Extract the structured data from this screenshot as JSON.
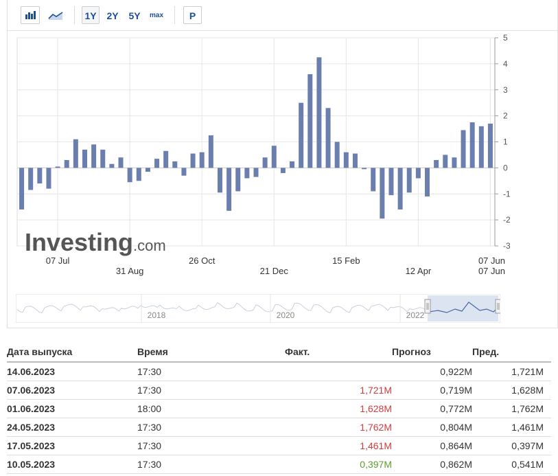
{
  "toolbar": {
    "bar_chart_icon": "bar-chart-icon",
    "area_chart_icon": "area-chart-icon",
    "ranges": [
      "1Y",
      "2Y",
      "5Y",
      "max"
    ],
    "active_range": "1Y",
    "p_label": "P"
  },
  "watermark": {
    "brand": "Investing",
    "suffix": ".com"
  },
  "colors": {
    "bar": "#6b7faf",
    "grid": "#e6e6e6",
    "red": "#d23c3c",
    "green": "#5a9e2b",
    "nav_fill": "#dce4f1",
    "nav_line": "#4a66a8"
  },
  "chart_data": {
    "type": "bar",
    "values": [
      -1.6,
      -0.85,
      -0.6,
      -0.8,
      0.05,
      0.3,
      1.1,
      0.7,
      0.9,
      0.7,
      0.15,
      0.4,
      -0.55,
      -0.5,
      -0.15,
      0.35,
      0.65,
      0.25,
      -0.3,
      0.55,
      0.6,
      1.25,
      -0.95,
      -1.65,
      -0.9,
      -0.4,
      -0.35,
      0.4,
      0.85,
      -0.2,
      0.25,
      2.5,
      3.6,
      4.25,
      2.3,
      1.0,
      0.6,
      0.55,
      -0.05,
      -0.9,
      -1.95,
      -1.05,
      -1.6,
      -0.95,
      -0.4,
      -1.1,
      0.3,
      0.5,
      0.4,
      1.45,
      1.75,
      1.6,
      1.7
    ],
    "ylim": [
      -3,
      5
    ],
    "yticks": [
      "-3",
      "-2",
      "-1",
      "0",
      "1",
      "2",
      "3",
      "4",
      "5"
    ],
    "xticks_row1": [
      {
        "label": "07 Jul",
        "index": 4
      },
      {
        "label": "26 Oct",
        "index": 20
      },
      {
        "label": "15 Feb",
        "index": 36
      },
      {
        "label": "07 Jun",
        "index": 52
      }
    ],
    "xticks_row2": [
      {
        "label": "31 Aug",
        "index": 12
      },
      {
        "label": "21 Dec",
        "index": 28
      },
      {
        "label": "12 Apr",
        "index": 44
      },
      {
        "label": "07 Jun",
        "index": 52
      }
    ]
  },
  "navigator": {
    "years": [
      "2018",
      "2020",
      "2022"
    ]
  },
  "table": {
    "headers": {
      "date": "Дата выпуска",
      "time": "Время",
      "fact": "Факт.",
      "forecast": "Прогноз",
      "prev": "Пред."
    },
    "rows": [
      {
        "date": "14.06.2023",
        "time": "17:30",
        "fact": "",
        "fact_color": "",
        "forecast": "0,922M",
        "prev": "1,721M"
      },
      {
        "date": "07.06.2023",
        "time": "17:30",
        "fact": "1,721M",
        "fact_color": "red",
        "forecast": "0,719M",
        "prev": "1,628M"
      },
      {
        "date": "01.06.2023",
        "time": "18:00",
        "fact": "1,628M",
        "fact_color": "red",
        "forecast": "0,772M",
        "prev": "1,762M"
      },
      {
        "date": "24.05.2023",
        "time": "17:30",
        "fact": "1,762M",
        "fact_color": "red",
        "forecast": "0,804M",
        "prev": "1,461M"
      },
      {
        "date": "17.05.2023",
        "time": "17:30",
        "fact": "1,461M",
        "fact_color": "red",
        "forecast": "0,864M",
        "prev": "0,397M"
      },
      {
        "date": "10.05.2023",
        "time": "17:30",
        "fact": "0,397M",
        "fact_color": "green",
        "forecast": "0,862M",
        "prev": "0,541M"
      }
    ]
  }
}
